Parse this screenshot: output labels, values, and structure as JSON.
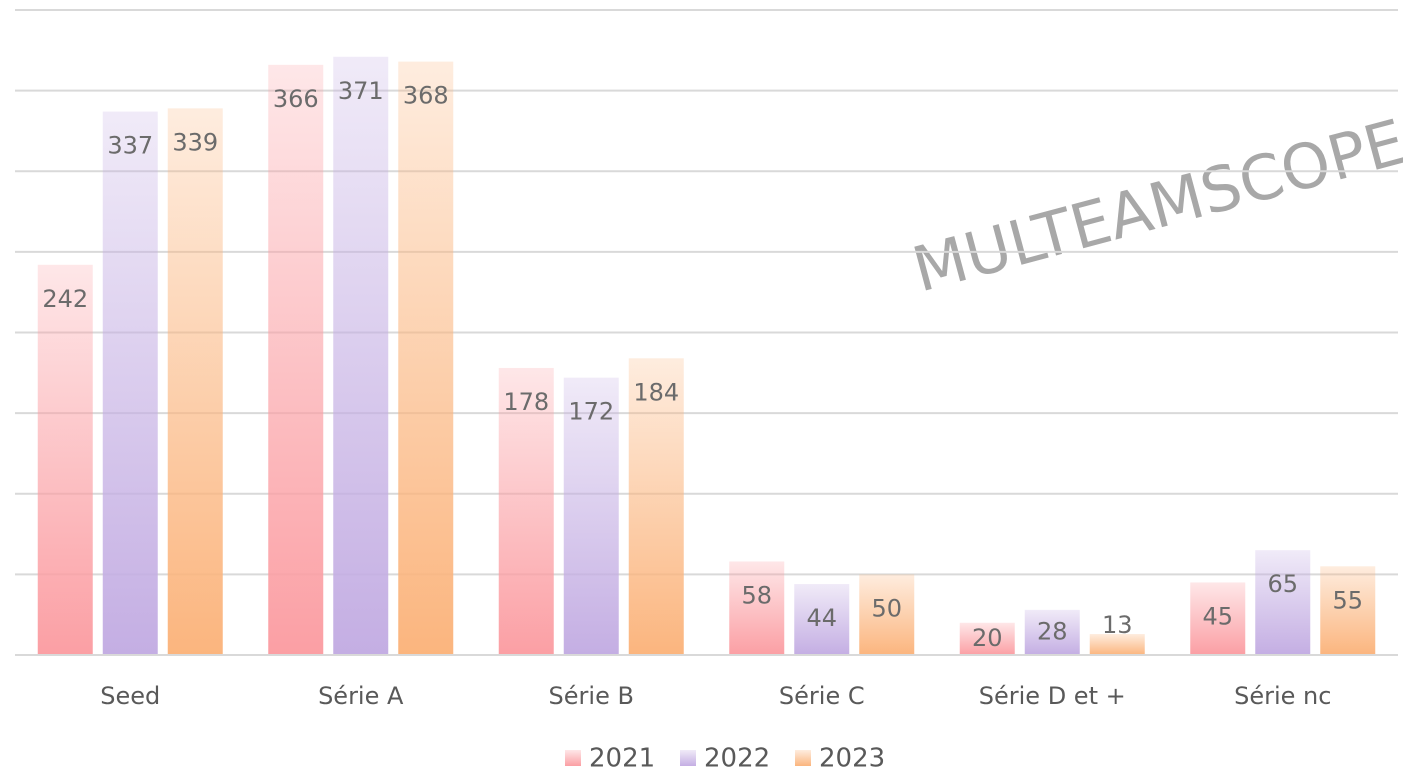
{
  "chart_data": {
    "type": "bar",
    "annotation": "MULTEAMSCOPE",
    "categories": [
      "Seed",
      "Série A",
      "Série B",
      "Série C",
      "Série D et +",
      "Série nc"
    ],
    "series": [
      {
        "name": "2021",
        "color": "#fb9fa4",
        "values": [
          242,
          366,
          178,
          58,
          20,
          45
        ]
      },
      {
        "name": "2022",
        "color": "#c4aee3",
        "values": [
          337,
          371,
          172,
          44,
          28,
          65
        ]
      },
      {
        "name": "2023",
        "color": "#fbb57e",
        "values": [
          339,
          368,
          184,
          50,
          13,
          55
        ]
      }
    ],
    "ylim": [
      0,
      400
    ],
    "yticks": [
      0,
      50,
      100,
      150,
      200,
      250,
      300,
      350,
      400
    ],
    "grid": true,
    "legend": "bottom"
  }
}
